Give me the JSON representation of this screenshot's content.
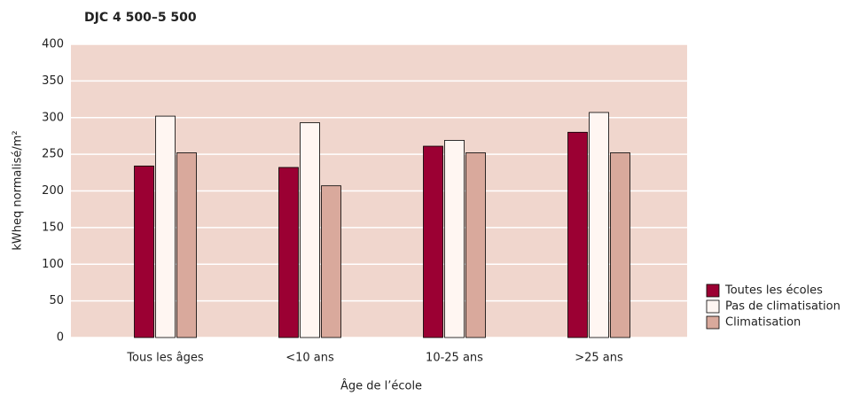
{
  "chart_data": {
    "type": "bar",
    "title": "DJC 4 500–5 500",
    "xlabel": "Âge de l’école",
    "ylabel": "kWheq normalisé/m²",
    "categories": [
      "Tous les âges",
      "<10 ans",
      "10-25 ans",
      ">25 ans"
    ],
    "series": [
      {
        "name": "Toutes les écoles",
        "color": "#9b0033",
        "values": [
          234,
          232,
          261,
          280
        ]
      },
      {
        "name": "Pas de climatisation",
        "color": "#fff6f2",
        "values": [
          302,
          293,
          269,
          307
        ]
      },
      {
        "name": "Climatisation",
        "color": "#d9a99c",
        "values": [
          252,
          207,
          252,
          252
        ]
      }
    ],
    "ylim": [
      0,
      400
    ],
    "yticks": [
      0,
      50,
      100,
      150,
      200,
      250,
      300,
      350,
      400
    ],
    "grid": true,
    "legend": "lower right"
  }
}
